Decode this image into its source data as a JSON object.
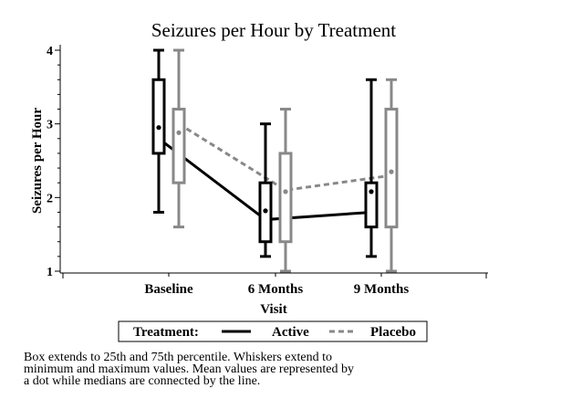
{
  "chart_data": {
    "type": "box",
    "title": "Seizures per Hour by Treatment",
    "xlabel": "Visit",
    "ylabel": "Seizures per Hour",
    "categories": [
      "Baseline",
      "6 Months",
      "9 Months"
    ],
    "ylim": [
      1,
      4
    ],
    "yticks": [
      1,
      2,
      3,
      4
    ],
    "legend": {
      "title": "Treatment:",
      "position": "bottom",
      "entries": [
        {
          "name": "Active",
          "style": "solid",
          "color": "#000000"
        },
        {
          "name": "Placebo",
          "style": "dashed",
          "color": "#888888"
        }
      ]
    },
    "series": [
      {
        "name": "Active",
        "color": "#000000",
        "line": "solid",
        "boxes": [
          {
            "min": 1.8,
            "q1": 2.6,
            "median": 2.8,
            "q3": 3.6,
            "max": 4.0,
            "mean": 2.95
          },
          {
            "min": 1.2,
            "q1": 1.4,
            "median": 1.7,
            "q3": 2.2,
            "max": 3.0,
            "mean": 1.82
          },
          {
            "min": 1.2,
            "q1": 1.6,
            "median": 1.8,
            "q3": 2.2,
            "max": 3.6,
            "mean": 2.08
          }
        ]
      },
      {
        "name": "Placebo",
        "color": "#888888",
        "line": "dashed",
        "boxes": [
          {
            "min": 1.6,
            "q1": 2.2,
            "median": 3.0,
            "q3": 3.2,
            "max": 4.0,
            "mean": 2.88
          },
          {
            "min": 1.0,
            "q1": 1.4,
            "median": 2.1,
            "q3": 2.6,
            "max": 3.2,
            "mean": 2.08
          },
          {
            "min": 1.0,
            "q1": 1.6,
            "median": 2.3,
            "q3": 3.2,
            "max": 3.6,
            "mean": 2.35
          }
        ]
      }
    ]
  },
  "footnote": {
    "line1": "Box extends to 25th and 75th percentile.  Whiskers extend to",
    "line2": "minimum and maximum values.  Mean values are represented by",
    "line3": "a dot while medians are connected by the line."
  }
}
